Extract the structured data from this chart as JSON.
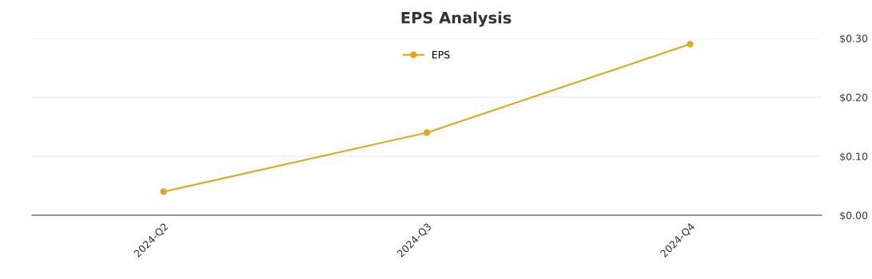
{
  "chart_data": {
    "type": "line",
    "title": "EPS Analysis",
    "categories": [
      "2024-Q2",
      "2024-Q3",
      "2024-Q4"
    ],
    "series": [
      {
        "name": "EPS",
        "color": "#e0a817",
        "values": [
          0.04,
          0.14,
          0.29
        ]
      }
    ],
    "ylim": [
      0,
      0.3
    ],
    "yticks": [
      {
        "value": 0,
        "label": "$0.00"
      },
      {
        "value": 0.1,
        "label": "$0.10"
      },
      {
        "value": 0.2,
        "label": "$0.20"
      },
      {
        "value": 0.3,
        "label": "$0.30"
      }
    ],
    "grid": "y",
    "legend": "top",
    "marker": "circle",
    "line_style": "solid"
  }
}
